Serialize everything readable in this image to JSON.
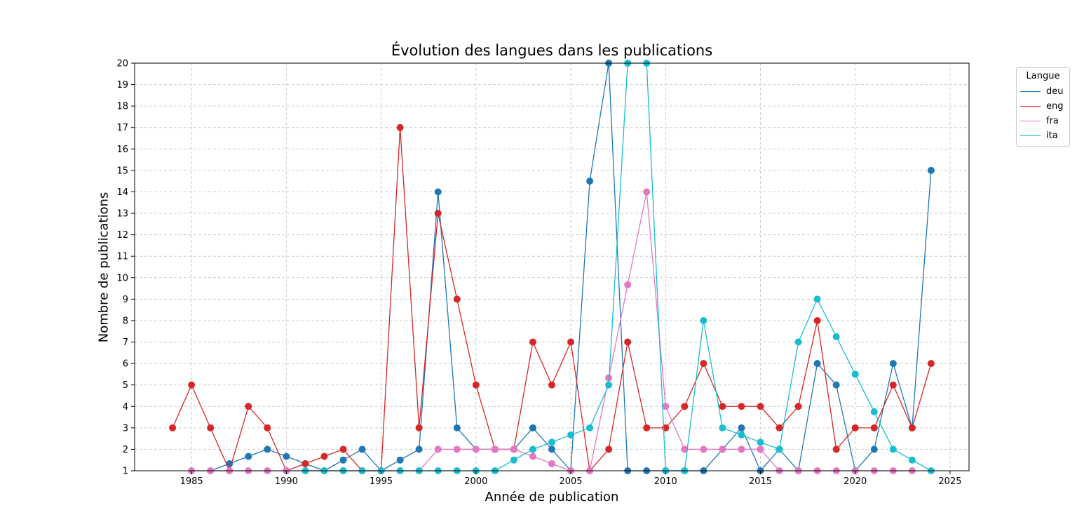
{
  "chart_data": {
    "type": "line",
    "title": "Évolution des langues dans les publications",
    "xlabel": "Année de publication",
    "ylabel": "Nombre de publications",
    "xlim": [
      1982,
      2026
    ],
    "ylim": [
      1,
      20
    ],
    "xticks": [
      1985,
      1990,
      1995,
      2000,
      2005,
      2010,
      2015,
      2020,
      2025
    ],
    "yticks": [
      1,
      2,
      3,
      4,
      5,
      6,
      7,
      8,
      9,
      10,
      11,
      12,
      13,
      14,
      15,
      16,
      17,
      18,
      19,
      20
    ],
    "grid": true,
    "legend": {
      "title": "Langue",
      "placement": "outside-top-right"
    },
    "series": [
      {
        "name": "deu",
        "color": "#1f77b4",
        "x": [
          1986,
          1987,
          1988,
          1989,
          1990,
          1991,
          1992,
          1993,
          1994,
          1995,
          1996,
          1997,
          1998,
          1999,
          2000,
          2001,
          2002,
          2003,
          2004,
          2005,
          2006,
          2007,
          2008,
          2009,
          2010,
          2011,
          2012,
          2013,
          2014,
          2015,
          2016,
          2017,
          2018,
          2019,
          2020,
          2021,
          2022,
          2023,
          2024
        ],
        "y": [
          1,
          1.33,
          1.67,
          2,
          1.67,
          1.33,
          1,
          1.5,
          2,
          1,
          1.5,
          2,
          14,
          3,
          2,
          2,
          2,
          3,
          2,
          1,
          14.5,
          20,
          1,
          1,
          1,
          1,
          1,
          2,
          3,
          1,
          2,
          1,
          6,
          5,
          1,
          2,
          6,
          3,
          15
        ]
      },
      {
        "name": "eng",
        "color": "#d62728",
        "x": [
          1984,
          1985,
          1986,
          1987,
          1988,
          1989,
          1990,
          1991,
          1992,
          1993,
          1994,
          1995,
          1996,
          1997,
          1998,
          1999,
          2000,
          2001,
          2002,
          2003,
          2004,
          2005,
          2006,
          2007,
          2008,
          2009,
          2010,
          2011,
          2012,
          2013,
          2014,
          2015,
          2016,
          2017,
          2018,
          2019,
          2020,
          2021,
          2022,
          2023,
          2024
        ],
        "y": [
          3,
          5,
          3,
          1,
          4,
          3,
          1,
          1.33,
          1.67,
          2,
          1,
          1,
          17,
          3,
          13,
          9,
          5,
          2,
          2,
          7,
          5,
          7,
          1,
          2,
          7,
          3,
          3,
          4,
          6,
          4,
          4,
          4,
          3,
          4,
          8,
          2,
          3,
          3,
          5,
          3,
          6
        ]
      },
      {
        "name": "fra",
        "color": "#e377c2",
        "x": [
          1985,
          1986,
          1987,
          1988,
          1989,
          1990,
          1991,
          1992,
          1993,
          1994,
          1995,
          1996,
          1997,
          1998,
          1999,
          2000,
          2001,
          2002,
          2003,
          2004,
          2005,
          2006,
          2007,
          2008,
          2009,
          2010,
          2011,
          2012,
          2013,
          2014,
          2015,
          2016,
          2017,
          2018,
          2019,
          2020,
          2021,
          2022,
          2023
        ],
        "y": [
          1,
          1,
          1,
          1,
          1,
          1,
          1,
          1,
          1,
          1,
          1,
          1,
          1,
          2,
          2,
          2,
          2,
          2,
          1.67,
          1.33,
          1,
          1,
          5.33,
          9.67,
          14,
          4,
          2,
          2,
          2,
          2,
          2,
          1,
          1,
          1,
          1,
          1,
          1,
          1,
          1
        ]
      },
      {
        "name": "ita",
        "color": "#17becf",
        "x": [
          1991,
          1992,
          1993,
          1994,
          1995,
          1996,
          1997,
          1998,
          1999,
          2000,
          2001,
          2002,
          2003,
          2004,
          2005,
          2006,
          2007,
          2008,
          2009,
          2010,
          2011,
          2012,
          2013,
          2014,
          2015,
          2016,
          2017,
          2018,
          2019,
          2020,
          2021,
          2022,
          2023,
          2024
        ],
        "y": [
          1,
          1,
          1,
          1,
          1,
          1,
          1,
          1,
          1,
          1,
          1,
          1.5,
          2,
          2.33,
          2.67,
          3,
          5,
          20,
          20,
          1,
          1,
          8,
          3,
          2.67,
          2.33,
          2,
          7,
          9,
          7.25,
          5.5,
          3.75,
          2,
          1.5,
          1
        ]
      }
    ]
  }
}
